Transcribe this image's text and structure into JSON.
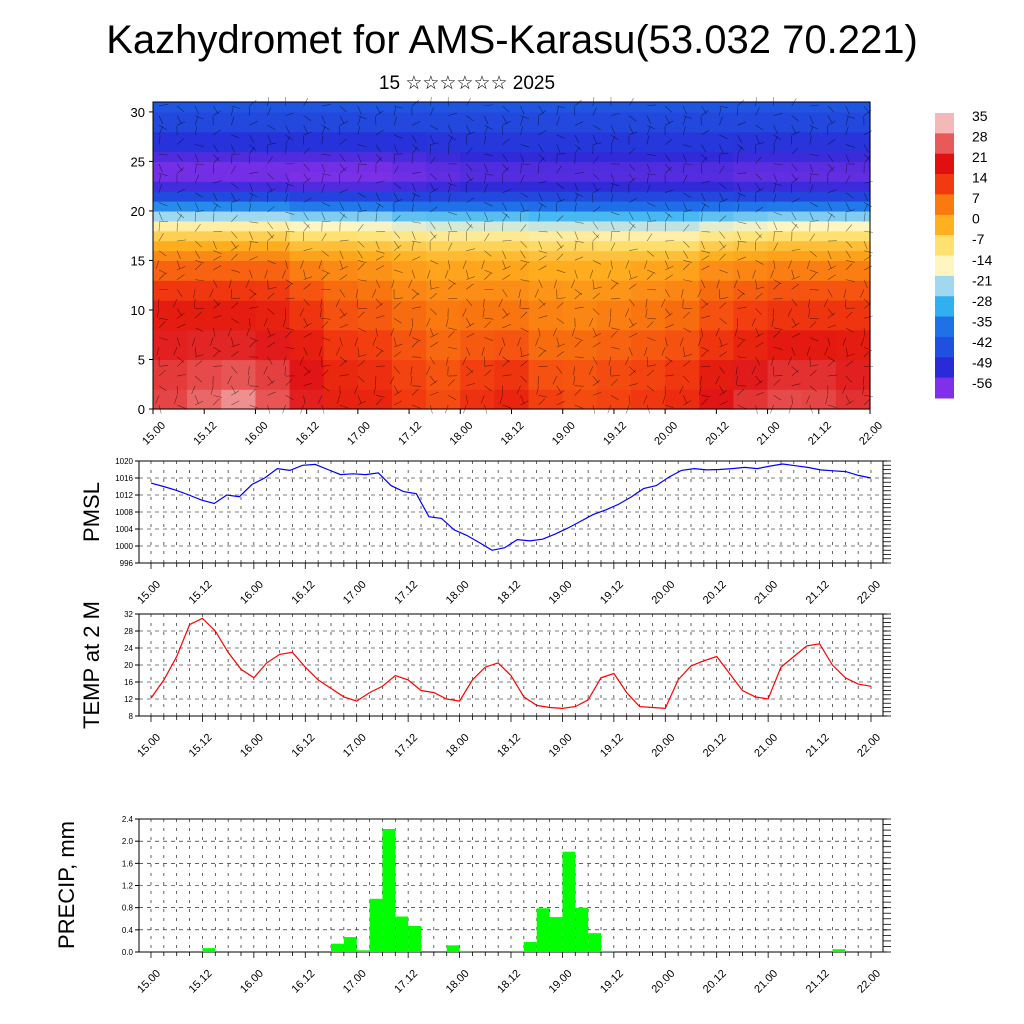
{
  "title": "Kazhydromet for AMS-Karasu(53.032 70.221)",
  "subtitle": "15 ☆☆☆☆☆☆ 2025",
  "colorbar": {
    "labels": [
      "35",
      "28",
      "21",
      "14",
      "7",
      "0",
      "-7",
      "-14",
      "-21",
      "-28",
      "-35",
      "-42",
      "-49",
      "-56"
    ],
    "colors": [
      "#f4b8b8",
      "#e85a5a",
      "#e01010",
      "#f23a10",
      "#fa7a10",
      "#ffb020",
      "#ffe070",
      "#fff5c0",
      "#a0d8f0",
      "#30b0f0",
      "#2070e8",
      "#2050e0",
      "#2a2ad8",
      "#8030e8"
    ]
  },
  "chart_data": [
    {
      "type": "heatmap",
      "title": "",
      "ylabel": "",
      "ylim": [
        0,
        31
      ],
      "yticks": [
        "0",
        "5",
        "10",
        "15",
        "20",
        "25",
        "30"
      ],
      "xticks": [
        "15.00",
        "15.12",
        "16.00",
        "16.12",
        "17.00",
        "17.12",
        "18.00",
        "18.12",
        "19.00",
        "19.12",
        "20.00",
        "20.12",
        "21.00",
        "21.12",
        "22.00"
      ],
      "heights": [
        0,
        2,
        5,
        8,
        11,
        13,
        15,
        16,
        17,
        18,
        19,
        20,
        21,
        22,
        23,
        24,
        25,
        26,
        28,
        30,
        31
      ],
      "column_temps": [
        [
          26,
          26,
          24,
          21,
          17,
          12,
          7,
          3,
          -2,
          -7,
          -16,
          -26,
          -38,
          -48,
          -54,
          -56,
          -54,
          -50,
          -45,
          -42,
          -40
        ],
        [
          30,
          28,
          25,
          21,
          17,
          12,
          7,
          3,
          -2,
          -7,
          -16,
          -26,
          -38,
          -48,
          -54,
          -56,
          -54,
          -50,
          -45,
          -42,
          -40
        ],
        [
          34,
          30,
          25,
          21,
          17,
          12,
          7,
          3,
          -2,
          -7,
          -16,
          -26,
          -38,
          -48,
          -54,
          -56,
          -54,
          -50,
          -45,
          -42,
          -40
        ],
        [
          28,
          27,
          24,
          20,
          16,
          12,
          7,
          3,
          -2,
          -7,
          -16,
          -26,
          -38,
          -48,
          -54,
          -56,
          -54,
          -50,
          -45,
          -42,
          -40
        ],
        [
          22,
          23,
          20,
          17,
          13,
          9,
          4,
          0,
          -4,
          -10,
          -18,
          -28,
          -40,
          -49,
          -55,
          -56,
          -54,
          -50,
          -45,
          -42,
          -40
        ],
        [
          18,
          18,
          16,
          13,
          10,
          7,
          3,
          0,
          -4,
          -10,
          -18,
          -28,
          -40,
          -49,
          -55,
          -56,
          -54,
          -50,
          -45,
          -42,
          -40
        ],
        [
          18,
          17,
          15,
          12,
          9,
          6,
          2,
          -1,
          -5,
          -11,
          -18,
          -28,
          -40,
          -49,
          -55,
          -56,
          -54,
          -50,
          -45,
          -42,
          -40
        ],
        [
          14,
          14,
          12,
          10,
          7,
          4,
          1,
          -2,
          -6,
          -12,
          -20,
          -30,
          -40,
          -48,
          -54,
          -55,
          -53,
          -50,
          -45,
          -42,
          -40
        ],
        [
          12,
          12,
          10,
          8,
          6,
          3,
          0,
          -3,
          -7,
          -13,
          -21,
          -30,
          -40,
          -48,
          -53,
          -54,
          -52,
          -49,
          -45,
          -42,
          -40
        ],
        [
          16,
          15,
          12,
          9,
          6,
          3,
          0,
          -3,
          -7,
          -13,
          -21,
          -30,
          -40,
          -47,
          -52,
          -53,
          -51,
          -48,
          -45,
          -42,
          -40
        ],
        [
          18,
          17,
          13,
          9,
          6,
          3,
          0,
          -3,
          -7,
          -13,
          -21,
          -30,
          -40,
          -47,
          -52,
          -53,
          -51,
          -48,
          -45,
          -42,
          -40
        ],
        [
          14,
          13,
          10,
          7,
          5,
          2,
          -1,
          -4,
          -8,
          -14,
          -22,
          -31,
          -40,
          -47,
          -52,
          -53,
          -51,
          -48,
          -45,
          -42,
          -40
        ],
        [
          12,
          12,
          10,
          7,
          4,
          2,
          -1,
          -4,
          -8,
          -14,
          -22,
          -31,
          -40,
          -47,
          -52,
          -53,
          -51,
          -48,
          -45,
          -42,
          -40
        ],
        [
          13,
          13,
          11,
          8,
          5,
          2,
          -1,
          -4,
          -9,
          -15,
          -22,
          -31,
          -40,
          -47,
          -52,
          -53,
          -51,
          -48,
          -45,
          -42,
          -40
        ],
        [
          15,
          14,
          12,
          9,
          6,
          3,
          0,
          -4,
          -9,
          -15,
          -22,
          -31,
          -40,
          -47,
          -52,
          -53,
          -51,
          -48,
          -45,
          -42,
          -40
        ],
        [
          17,
          16,
          13,
          10,
          7,
          4,
          0,
          -4,
          -9,
          -15,
          -22,
          -31,
          -40,
          -47,
          -52,
          -53,
          -51,
          -48,
          -45,
          -42,
          -40
        ],
        [
          22,
          21,
          17,
          13,
          10,
          7,
          2,
          -2,
          -6,
          -12,
          -20,
          -30,
          -40,
          -47,
          -52,
          -53,
          -51,
          -48,
          -45,
          -42,
          -40
        ],
        [
          25,
          24,
          20,
          15,
          12,
          8,
          3,
          -1,
          -5,
          -11,
          -19,
          -29,
          -40,
          -48,
          -53,
          -54,
          -52,
          -49,
          -45,
          -42,
          -40
        ],
        [
          27,
          26,
          22,
          17,
          13,
          9,
          4,
          0,
          -4,
          -10,
          -18,
          -28,
          -40,
          -48,
          -53,
          -54,
          -52,
          -49,
          -45,
          -42,
          -40
        ],
        [
          26,
          26,
          22,
          17,
          13,
          9,
          4,
          0,
          -4,
          -10,
          -18,
          -28,
          -40,
          -48,
          -53,
          -54,
          -52,
          -49,
          -45,
          -42,
          -40
        ],
        [
          24,
          24,
          21,
          17,
          13,
          9,
          4,
          0,
          -4,
          -10,
          -18,
          -28,
          -40,
          -48,
          -53,
          -54,
          -52,
          -49,
          -45,
          -42,
          -40
        ]
      ]
    },
    {
      "type": "line",
      "ylabel": "PMSL",
      "ylim": [
        996,
        1020
      ],
      "yticks": [
        "996",
        "1000",
        "1004",
        "1008",
        "1012",
        "1016",
        "1020"
      ],
      "xticks": [
        "15.00",
        "15.12",
        "16.00",
        "16.12",
        "17.00",
        "17.12",
        "18.00",
        "18.12",
        "19.00",
        "19.12",
        "20.00",
        "20.12",
        "21.00",
        "21.12",
        "22.00"
      ],
      "series": [
        {
          "color": "#0000ff",
          "values": [
            1014.8,
            1014.0,
            1013.1,
            1012.0,
            1010.8,
            1010.0,
            1012.0,
            1011.6,
            1014.5,
            1016.0,
            1018.2,
            1017.8,
            1019.0,
            1019.2,
            1018.0,
            1016.8,
            1017.0,
            1016.8,
            1017.2,
            1014.2,
            1012.8,
            1012.3,
            1006.9,
            1006.5,
            1003.8,
            1002.5,
            1000.8,
            999.0,
            999.6,
            1001.5,
            1001.2,
            1001.6,
            1002.8,
            1004.2,
            1005.8,
            1007.4,
            1008.5,
            1009.8,
            1011.5,
            1013.5,
            1014.2,
            1016.2,
            1017.8,
            1018.2,
            1017.9,
            1018.0,
            1018.2,
            1018.5,
            1018.2,
            1018.8,
            1019.3,
            1018.9,
            1018.5,
            1017.9,
            1017.7,
            1017.5,
            1016.6,
            1016.0
          ]
        }
      ]
    },
    {
      "type": "line",
      "ylabel": "TEMP at 2 M",
      "ylim": [
        8,
        32
      ],
      "yticks": [
        "8",
        "12",
        "16",
        "20",
        "24",
        "28",
        "32"
      ],
      "xticks": [
        "15.00",
        "15.12",
        "16.00",
        "16.12",
        "17.00",
        "17.12",
        "18.00",
        "18.12",
        "19.00",
        "19.12",
        "20.00",
        "20.12",
        "21.00",
        "21.12",
        "22.00"
      ],
      "series": [
        {
          "color": "#ff0000",
          "values": [
            12.2,
            16.5,
            22.0,
            29.5,
            31.0,
            28.0,
            23.0,
            19.0,
            17.0,
            20.5,
            22.5,
            23.0,
            19.5,
            16.5,
            14.5,
            12.5,
            11.5,
            13.5,
            15.0,
            17.5,
            16.5,
            14.0,
            13.5,
            12.0,
            11.5,
            16.5,
            19.5,
            20.5,
            17.5,
            12.5,
            10.5,
            10.0,
            9.8,
            10.2,
            11.8,
            17.0,
            18.0,
            13.5,
            10.2,
            10.0,
            9.8,
            16.5,
            19.8,
            21.0,
            22.0,
            18.0,
            14.0,
            12.5,
            12.0,
            19.5,
            22.0,
            24.5,
            25.0,
            20.0,
            17.0,
            15.5,
            15.0
          ]
        }
      ]
    },
    {
      "type": "bar",
      "ylabel": "PRECIP, mm",
      "ylim": [
        0,
        2.4
      ],
      "yticks": [
        "0.0",
        "0.4",
        "0.8",
        "1.2",
        "1.6",
        "2.0",
        "2.4"
      ],
      "xticks": [
        "15.00",
        "15.12",
        "16.00",
        "16.12",
        "17.00",
        "17.12",
        "18.00",
        "18.12",
        "19.00",
        "19.12",
        "20.00",
        "20.12",
        "21.00",
        "21.12",
        "22.00"
      ],
      "series": [
        {
          "color": "#00ff00",
          "values": [
            0,
            0,
            0,
            0,
            0.07,
            0,
            0,
            0,
            0,
            0,
            0,
            0,
            0,
            0,
            0.15,
            0.27,
            0.03,
            0.96,
            2.22,
            0.64,
            0.47,
            0,
            0,
            0.12,
            0.02,
            0,
            0,
            0,
            0.02,
            0.18,
            0.79,
            0.63,
            1.81,
            0.8,
            0.34,
            0.02,
            0,
            0,
            0,
            0,
            0,
            0,
            0,
            0,
            0,
            0,
            0,
            0,
            0,
            0,
            0,
            0,
            0,
            0.05,
            0,
            0
          ]
        }
      ]
    }
  ]
}
